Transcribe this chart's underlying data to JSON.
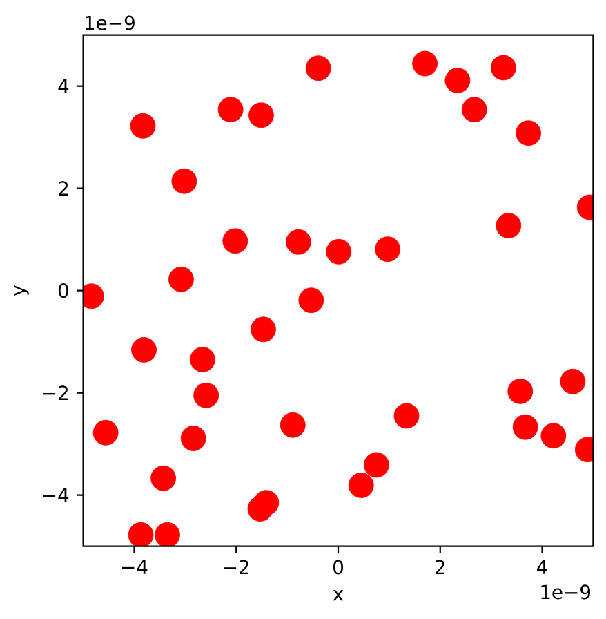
{
  "chart_data": {
    "type": "scatter",
    "xlabel": "x",
    "ylabel": "y",
    "annotations": [
      "1e−9",
      "1e−9"
    ],
    "marker": "circle",
    "xlim": [
      -5,
      5
    ],
    "ylim": [
      -5,
      5
    ],
    "xticks": [
      {
        "value": -4,
        "label": "−4"
      },
      {
        "value": -2,
        "label": "−2"
      },
      {
        "value": 0,
        "label": "0"
      },
      {
        "value": 2,
        "label": "2"
      },
      {
        "value": 4,
        "label": "4"
      }
    ],
    "yticks": [
      {
        "value": -4,
        "label": "−4"
      },
      {
        "value": -2,
        "label": "−2"
      },
      {
        "value": 0,
        "label": "0"
      },
      {
        "value": 2,
        "label": "2"
      },
      {
        "value": 4,
        "label": "4"
      }
    ],
    "x": [
      -0.39,
      -3.83,
      -2.11,
      -1.51,
      -3.02,
      -2.02,
      -0.78,
      0.01,
      -3.08,
      -4.84,
      -0.53,
      1.7,
      2.34,
      3.24,
      2.67,
      3.73,
      4.93,
      3.34,
      0.97,
      -1.47,
      -3.81,
      -2.66,
      -2.59,
      -4.56,
      -0.89,
      -2.84,
      -3.43,
      -1.41,
      -1.53,
      -3.87,
      -3.35,
      1.34,
      0.75,
      0.45,
      3.57,
      4.6,
      3.67,
      4.22,
      4.89
    ],
    "series": [
      {
        "color": "#ff0000",
        "values": [
          4.35,
          3.22,
          3.54,
          3.43,
          2.14,
          0.97,
          0.95,
          0.76,
          0.22,
          -0.11,
          -0.19,
          4.44,
          4.11,
          4.36,
          3.54,
          3.08,
          1.63,
          1.27,
          0.81,
          -0.76,
          -1.16,
          -1.35,
          -2.05,
          -2.78,
          -2.63,
          -2.89,
          -3.67,
          -4.15,
          -4.27,
          -4.78,
          -4.78,
          -2.45,
          -3.41,
          -3.81,
          -1.97,
          -1.78,
          -2.67,
          -2.84,
          -3.11
        ]
      }
    ]
  }
}
